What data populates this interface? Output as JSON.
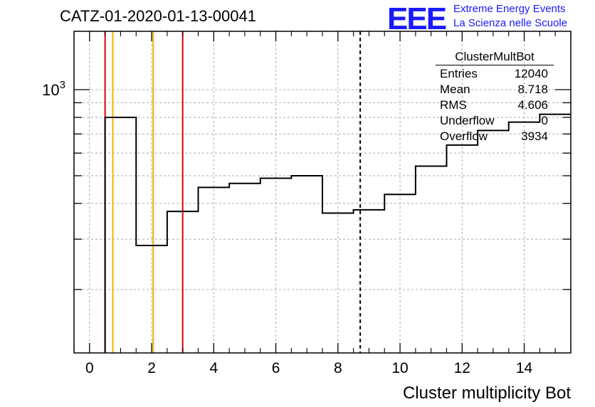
{
  "header": {
    "run_title": "CATZ-01-2020-01-13-00041",
    "logo_letters": "EEE",
    "logo_line1": "Extreme Energy Events",
    "logo_line2": "La Scienza nelle Scuole"
  },
  "stats": {
    "title": "ClusterMultBot",
    "rows": [
      {
        "label": "Entries",
        "value": "12040"
      },
      {
        "label": "Mean",
        "value": "8.718"
      },
      {
        "label": "RMS",
        "value": "4.606"
      },
      {
        "label": "Underflow",
        "value": "0"
      },
      {
        "label": "Overflow",
        "value": "3934"
      }
    ]
  },
  "chart_data": {
    "type": "histogram",
    "xlabel": "Cluster multiplicity Bot",
    "ylabel": "",
    "xlim": [
      -0.5,
      15.5
    ],
    "ylim": [
      120,
      1600
    ],
    "yscale": "log",
    "grid": true,
    "x_tick_labels": [
      "0",
      "2",
      "4",
      "6",
      "8",
      "10",
      "12",
      "14"
    ],
    "x_ticks": [
      0,
      2,
      4,
      6,
      8,
      10,
      12,
      14
    ],
    "y_tick_label": "10^3",
    "y_labeled_tick": 1000,
    "bins": [
      {
        "low": 0.5,
        "high": 1.5,
        "value": 800
      },
      {
        "low": 1.5,
        "high": 2.5,
        "value": 285
      },
      {
        "low": 2.5,
        "high": 3.5,
        "value": 375
      },
      {
        "low": 3.5,
        "high": 4.5,
        "value": 455
      },
      {
        "low": 4.5,
        "high": 5.5,
        "value": 470
      },
      {
        "low": 5.5,
        "high": 6.5,
        "value": 490
      },
      {
        "low": 6.5,
        "high": 7.5,
        "value": 500
      },
      {
        "low": 7.5,
        "high": 8.5,
        "value": 370
      },
      {
        "low": 8.5,
        "high": 9.5,
        "value": 380
      },
      {
        "low": 9.5,
        "high": 10.5,
        "value": 430
      },
      {
        "low": 10.5,
        "high": 11.5,
        "value": 540
      },
      {
        "low": 11.5,
        "high": 12.5,
        "value": 640
      },
      {
        "low": 12.5,
        "high": 13.5,
        "value": 720
      },
      {
        "low": 13.5,
        "high": 14.5,
        "value": 770
      },
      {
        "low": 14.5,
        "high": 15.5,
        "value": 820
      }
    ],
    "vertical_lines": [
      {
        "x": 0.5,
        "color": "#e00000",
        "style": "solid"
      },
      {
        "x": 0.75,
        "color": "#f0b400",
        "style": "solid"
      },
      {
        "x": 2.05,
        "color": "#f0b400",
        "style": "solid"
      },
      {
        "x": 3.0,
        "color": "#e00000",
        "style": "solid"
      },
      {
        "x": 8.718,
        "color": "#000000",
        "style": "dashed"
      }
    ]
  }
}
